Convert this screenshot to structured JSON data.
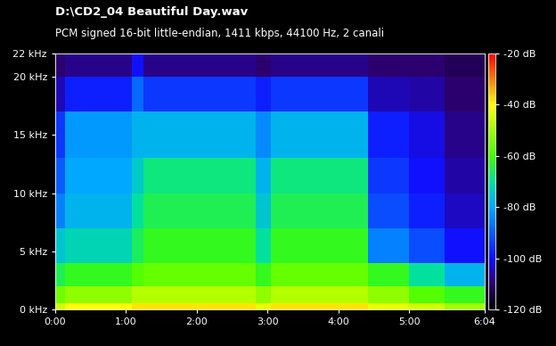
{
  "chart_data": {
    "type": "heatmap",
    "title": "D:\\CD2_04 Beautiful Day.wav",
    "subtitle": "PCM signed 16-bit little-endian, 1411 kbps, 44100 Hz, 2 canali",
    "x_edges": [
      0,
      8,
      65,
      75,
      170,
      183,
      265,
      300,
      330,
      364
    ],
    "y_edges": [
      0,
      0.5,
      2,
      4,
      7,
      10,
      13,
      17,
      20,
      22
    ],
    "cells": [
      [
        -45,
        -40,
        -38,
        -38,
        -42,
        -38,
        -42,
        -45,
        -50
      ],
      [
        -55,
        -52,
        -48,
        -48,
        -52,
        -48,
        -52,
        -58,
        -62
      ],
      [
        -65,
        -62,
        -58,
        -56,
        -62,
        -56,
        -62,
        -70,
        -78
      ],
      [
        -75,
        -72,
        -66,
        -62,
        -70,
        -62,
        -85,
        -92,
        -100
      ],
      [
        -85,
        -78,
        -70,
        -65,
        -75,
        -65,
        -92,
        -98,
        -104
      ],
      [
        -90,
        -80,
        -74,
        -68,
        -78,
        -68,
        -95,
        -100,
        -106
      ],
      [
        -95,
        -82,
        -78,
        -78,
        -84,
        -78,
        -98,
        -102,
        -108
      ],
      [
        -105,
        -98,
        -88,
        -95,
        -98,
        -95,
        -105,
        -106,
        -110
      ],
      [
        -110,
        -108,
        -100,
        -108,
        -110,
        -108,
        -110,
        -110,
        -112
      ]
    ],
    "xlim": [
      0,
      364
    ],
    "xticks": [
      {
        "value": 0,
        "label": "0:00"
      },
      {
        "value": 60,
        "label": "1:00"
      },
      {
        "value": 120,
        "label": "2:00"
      },
      {
        "value": 180,
        "label": "3:00"
      },
      {
        "value": 240,
        "label": "4:00"
      },
      {
        "value": 300,
        "label": "5:00"
      },
      {
        "value": 364,
        "label": "6:04"
      }
    ],
    "ylim": [
      0,
      22
    ],
    "yticks": [
      {
        "value": 0,
        "label": "0 kHz"
      },
      {
        "value": 5,
        "label": "5 kHz"
      },
      {
        "value": 10,
        "label": "10 kHz"
      },
      {
        "value": 15,
        "label": "15 kHz"
      },
      {
        "value": 20,
        "label": "20 kHz"
      },
      {
        "value": 22,
        "label": "22 kHz"
      }
    ],
    "colorbar_range": [
      -120,
      -20
    ],
    "colorbar_ticks": [
      {
        "value": -20,
        "label": "-20 dB"
      },
      {
        "value": -40,
        "label": "-40 dB"
      },
      {
        "value": -60,
        "label": "-60 dB"
      },
      {
        "value": -80,
        "label": "-80 dB"
      },
      {
        "value": -100,
        "label": "-100 dB"
      },
      {
        "value": -120,
        "label": "-120 dB"
      }
    ]
  }
}
